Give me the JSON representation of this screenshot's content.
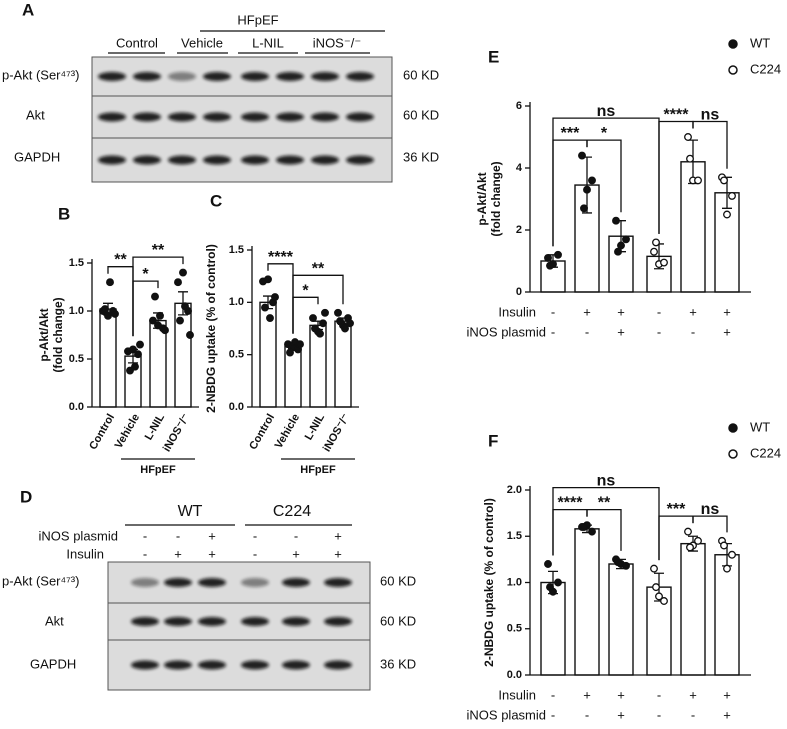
{
  "panel_a": {
    "label": "A",
    "group": "HFpEF",
    "lanes": [
      "Control",
      "Vehicle",
      "L-NIL",
      "iNOS⁻/⁻"
    ],
    "rows": [
      {
        "name": "p-Akt (Ser⁴⁷³)",
        "size": "60 KD"
      },
      {
        "name": "Akt",
        "size": "60 KD"
      },
      {
        "name": "GAPDH",
        "size": "36 KD"
      }
    ]
  },
  "panel_d": {
    "label": "D",
    "groups": [
      "WT",
      "C224"
    ],
    "conditions": [
      {
        "label": "iNOS plasmid",
        "signs": [
          "-",
          "-",
          "+",
          "-",
          "-",
          "+"
        ]
      },
      {
        "label": "Insulin",
        "signs": [
          "-",
          "+",
          "+",
          "-",
          "+",
          "+"
        ]
      }
    ],
    "rows": [
      {
        "name": "p-Akt (Ser⁴⁷³)",
        "size": "60 KD"
      },
      {
        "name": "Akt",
        "size": "60 KD"
      },
      {
        "name": "GAPDH",
        "size": "36 KD"
      }
    ]
  },
  "chart_data": [
    {
      "type": "bar",
      "panel": "B",
      "ylabel": [
        "p-Akt/Akt",
        "(fold change)"
      ],
      "categories": [
        "Control",
        "Vehicle",
        "L-NIL",
        "iNOS⁻/⁻"
      ],
      "values": [
        1.02,
        0.53,
        0.9,
        1.08
      ],
      "errors": [
        0.06,
        0.07,
        0.08,
        0.12
      ],
      "points": [
        [
          1.0,
          0.95,
          1.0,
          1.02,
          1.3,
          0.97
        ],
        [
          0.58,
          0.6,
          0.55,
          0.38,
          0.42,
          0.65
        ],
        [
          0.9,
          0.85,
          0.82,
          1.15,
          0.95,
          0.8
        ],
        [
          1.3,
          1.4,
          1.0,
          0.9,
          1.05,
          0.75
        ]
      ],
      "ylim": [
        0,
        1.5
      ],
      "yticks": [
        {
          "value": 0,
          "label": "0.0"
        },
        {
          "value": 0.5,
          "label": "0.5"
        },
        {
          "value": 1,
          "label": "1.0"
        },
        {
          "value": 1.5,
          "label": "1.5"
        }
      ],
      "group": {
        "label": "HFpEF",
        "from": 1,
        "to": 3
      },
      "color": "#ffffff",
      "annotations": [
        {
          "text": "**",
          "from": 0,
          "to": 1
        },
        {
          "text": "*",
          "from": 1,
          "to": 2
        },
        {
          "text": "**",
          "from": 1,
          "to": 3
        }
      ]
    },
    {
      "type": "bar",
      "panel": "C",
      "ylabel": [
        "2-NBDG uptake (% of control)"
      ],
      "categories": [
        "Control",
        "Vehicle",
        "L-NIL",
        "iNOS⁻/⁻"
      ],
      "values": [
        1.0,
        0.58,
        0.78,
        0.82
      ],
      "errors": [
        0.06,
        0.02,
        0.04,
        0.03
      ],
      "points": [
        [
          1.2,
          1.22,
          1.0,
          0.95,
          0.85,
          1.05
        ],
        [
          0.6,
          0.57,
          0.55,
          0.52,
          0.62,
          0.6
        ],
        [
          0.85,
          0.72,
          0.8,
          0.75,
          0.7,
          0.9
        ],
        [
          0.9,
          0.78,
          0.85,
          0.82,
          0.75,
          0.8
        ]
      ],
      "ylim": [
        0,
        1.5
      ],
      "yticks": [
        {
          "value": 0,
          "label": "0.0"
        },
        {
          "value": 0.5,
          "label": "0.5"
        },
        {
          "value": 1,
          "label": "1.0"
        },
        {
          "value": 1.5,
          "label": "1.5"
        }
      ],
      "group": {
        "label": "HFpEF",
        "from": 1,
        "to": 3
      },
      "color": "#ffffff",
      "annotations": [
        {
          "text": "****",
          "from": 0,
          "to": 1
        },
        {
          "text": "*",
          "from": 1,
          "to": 2
        },
        {
          "text": "**",
          "from": 1,
          "to": 3
        }
      ]
    },
    {
      "type": "bar",
      "panel": "E",
      "ylabel": [
        "p-Akt/Akt",
        "(fold change)"
      ],
      "color": "#ffffff",
      "series": [
        {
          "name": "WT",
          "marker": "filled",
          "values": [
            1.0,
            3.45,
            1.8
          ],
          "errors": [
            0.2,
            0.9,
            0.5
          ],
          "points": [
            [
              1.1,
              0.9,
              1.2,
              0.85
            ],
            [
              4.4,
              3.3,
              3.6,
              2.7
            ],
            [
              2.3,
              1.5,
              1.7,
              1.3
            ]
          ]
        },
        {
          "name": "C224",
          "marker": "open",
          "values": [
            1.15,
            4.2,
            3.2
          ],
          "errors": [
            0.4,
            0.7,
            0.5
          ],
          "points": [
            [
              1.3,
              0.9,
              0.95,
              1.6
            ],
            [
              5.0,
              3.6,
              3.6,
              4.3
            ],
            [
              3.7,
              2.5,
              3.1,
              3.6
            ]
          ]
        }
      ],
      "ylim": [
        0,
        6
      ],
      "yticks": [
        0,
        2,
        4,
        6
      ],
      "conditions": [
        {
          "label": "Insulin",
          "signs": [
            "-",
            "+",
            "+",
            "-",
            "+",
            "+"
          ]
        },
        {
          "label": "iNOS plasmid",
          "signs": [
            "-",
            "-",
            "+",
            "-",
            "-",
            "+"
          ]
        }
      ],
      "annotations": [
        {
          "text": "***",
          "from": 0,
          "to": 1
        },
        {
          "text": "*",
          "from": 1,
          "to": 2
        },
        {
          "text": "****",
          "from": 3,
          "to": 4
        },
        {
          "text": "ns",
          "from": 4,
          "to": 5
        },
        {
          "text": "ns",
          "from": 0,
          "to": 3
        }
      ]
    },
    {
      "type": "bar",
      "panel": "F",
      "ylabel": [
        "2-NBDG uptake (% of control)"
      ],
      "color": "#ffffff",
      "series": [
        {
          "name": "WT",
          "marker": "filled",
          "values": [
            1.0,
            1.58,
            1.2
          ],
          "errors": [
            0.12,
            0.04,
            0.05
          ],
          "points": [
            [
              1.2,
              0.9,
              1.0,
              0.95
            ],
            [
              1.6,
              1.62,
              1.55,
              1.6
            ],
            [
              1.25,
              1.2,
              1.18,
              1.22
            ]
          ]
        },
        {
          "name": "C224",
          "marker": "open",
          "values": [
            0.95,
            1.42,
            1.3
          ],
          "errors": [
            0.15,
            0.08,
            0.12
          ],
          "points": [
            [
              1.15,
              0.85,
              0.8,
              0.95
            ],
            [
              1.55,
              1.4,
              1.45,
              1.38
            ],
            [
              1.45,
              1.15,
              1.3,
              1.4
            ]
          ]
        }
      ],
      "ylim": [
        0,
        2
      ],
      "yticks": [
        {
          "value": 0,
          "label": "0.0"
        },
        {
          "value": 0.5,
          "label": "0.5"
        },
        {
          "value": 1,
          "label": "1.0"
        },
        {
          "value": 1.5,
          "label": "1.5"
        },
        {
          "value": 2,
          "label": "2.0"
        }
      ],
      "conditions": [
        {
          "label": "Insulin",
          "signs": [
            "-",
            "+",
            "+",
            "-",
            "+",
            "+"
          ]
        },
        {
          "label": "iNOS plasmid",
          "signs": [
            "-",
            "-",
            "+",
            "-",
            "-",
            "+"
          ]
        }
      ],
      "annotations": [
        {
          "text": "****",
          "from": 0,
          "to": 1
        },
        {
          "text": "**",
          "from": 1,
          "to": 2
        },
        {
          "text": "***",
          "from": 3,
          "to": 4
        },
        {
          "text": "ns",
          "from": 4,
          "to": 5
        },
        {
          "text": "ns",
          "from": 0,
          "to": 3
        }
      ]
    }
  ]
}
